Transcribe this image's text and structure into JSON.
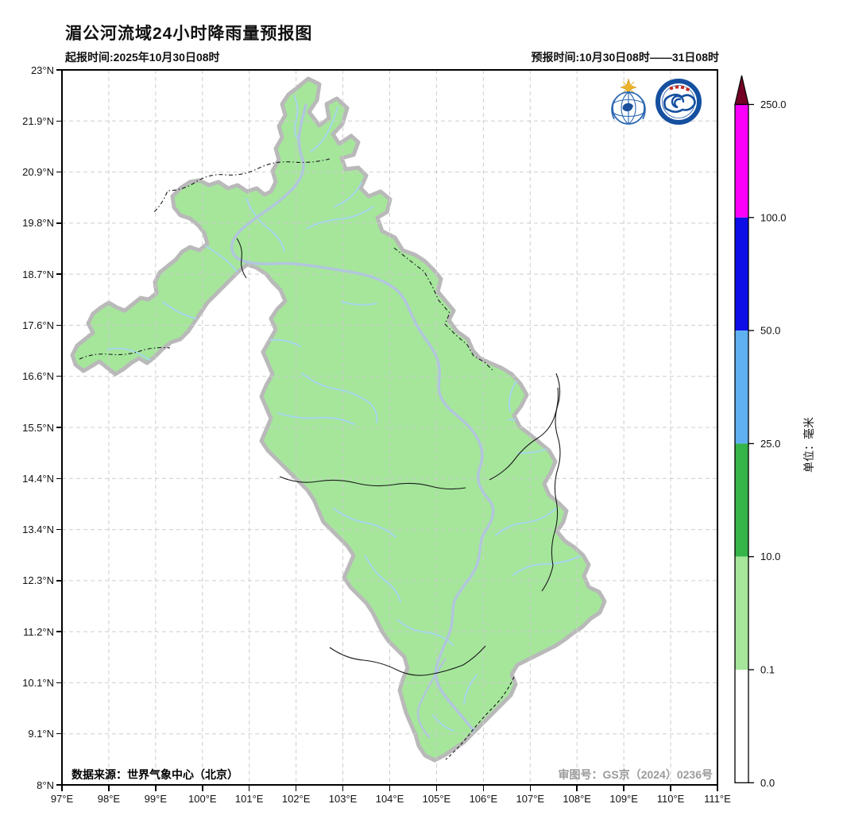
{
  "title": "湄公河流域24小时降雨量预报图",
  "issued_label": "起报时间:2025年10月30日08时",
  "valid_label": "预报时间:10月30日08时——31日08时",
  "axes": {
    "x_ticks": [
      "97°E",
      "98°E",
      "99°E",
      "100°E",
      "101°E",
      "102°E",
      "103°E",
      "104°E",
      "105°E",
      "106°E",
      "107°E",
      "108°E",
      "109°E",
      "110°E",
      "111°E"
    ],
    "y_ticks": [
      "23°N",
      "21.9°N",
      "20.9°N",
      "19.8°N",
      "18.7°N",
      "17.6°N",
      "16.6°N",
      "15.5°N",
      "14.4°N",
      "13.4°N",
      "12.3°N",
      "11.2°N",
      "10.1°N",
      "9.1°N",
      "8°N"
    ]
  },
  "footer": {
    "data_source": "数据来源：世界气象中心（北京）",
    "approval_number": "审图号：GS京（2024）0236号"
  },
  "colorbar": {
    "unit_label": "单位：毫米",
    "tick_labels": [
      "250.0",
      "100.0",
      "50.0",
      "25.0",
      "10.0",
      "0.1",
      "0.0"
    ],
    "segments_top_to_bottom": [
      {
        "range": "100.0-250.0",
        "color": "#fa00fa"
      },
      {
        "range": "50.0-100.0",
        "color": "#0d0de8"
      },
      {
        "range": "25.0-50.0",
        "color": "#5fb0f0"
      },
      {
        "range": "10.0-25.0",
        "color": "#35b44a"
      },
      {
        "range": "0.1-10.0",
        "color": "#a5e69b"
      },
      {
        "range": "0.0-0.1",
        "color": "#ffffff"
      }
    ],
    "extend_above": {
      "threshold": "250.0",
      "color": "#740026"
    }
  },
  "map_colors": {
    "light_green": "#a5e69b",
    "green": "#35b44a",
    "light_blue": "#5fb0f0",
    "river": "#a6d4f1",
    "main_river": "#b2c5de",
    "outline": "#b9b9b9"
  },
  "logos": {
    "left": "世界气象中心徽标",
    "right": "中国气象局徽标"
  }
}
